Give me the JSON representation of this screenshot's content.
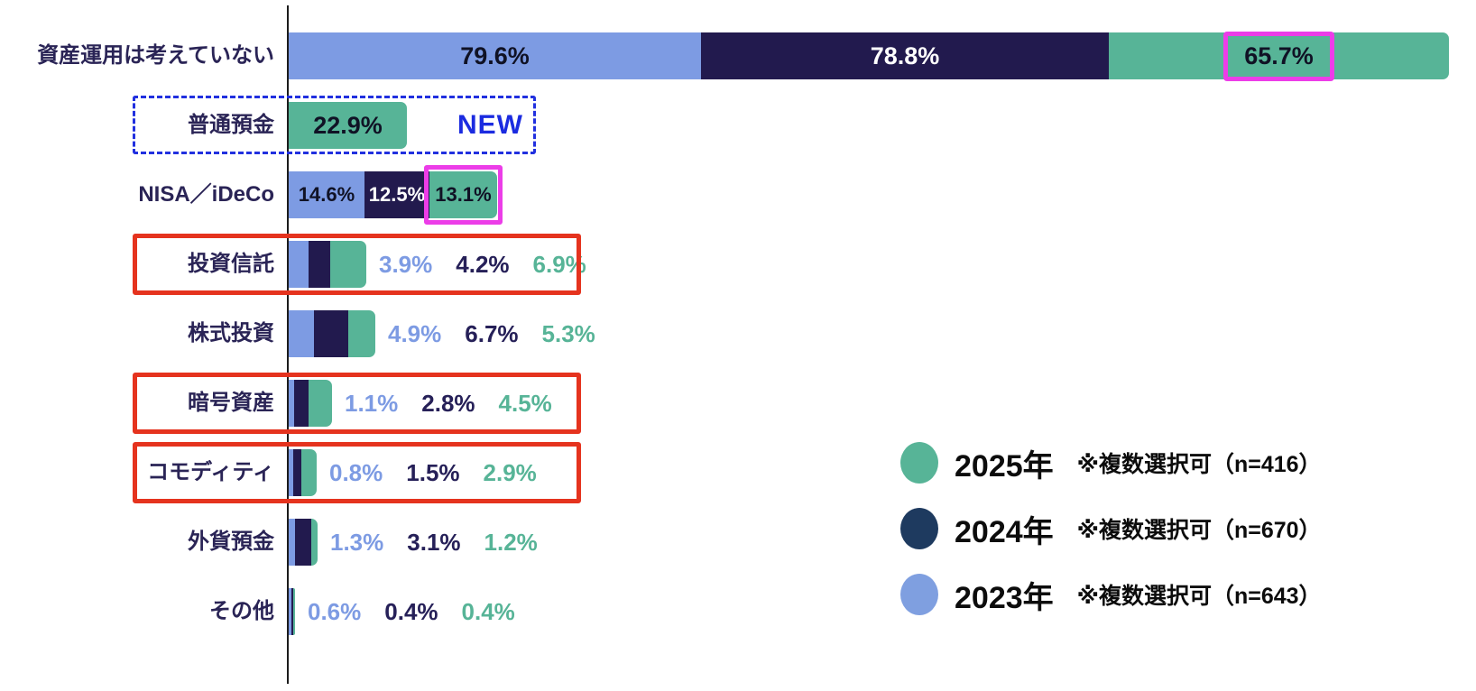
{
  "chart_data": {
    "type": "bar",
    "orientation": "horizontal-stacked",
    "value_unit": "%",
    "title": "",
    "categories": [
      "資産運用は考えていない",
      "普通預金",
      "NISA／iDeCo",
      "投資信託",
      "株式投資",
      "暗号資産",
      "コモディティ",
      "外貨預金",
      "その他"
    ],
    "series": [
      {
        "name": "2023年",
        "color": "#7D9BE3",
        "value_text_color": "#7D9BE3",
        "values": [
          79.6,
          null,
          14.6,
          3.9,
          4.9,
          1.1,
          0.8,
          1.3,
          0.6
        ]
      },
      {
        "name": "2024年",
        "color": "#221A4E",
        "value_text_color": "#262058",
        "values": [
          78.8,
          null,
          12.5,
          4.2,
          6.7,
          2.8,
          1.5,
          3.1,
          0.4
        ]
      },
      {
        "name": "2025年",
        "color": "#57B497",
        "value_text_color": "#57B497",
        "values": [
          65.7,
          22.9,
          13.1,
          6.9,
          5.3,
          4.5,
          2.9,
          1.2,
          0.4
        ]
      }
    ],
    "value_labels_inside_categories": [
      "資産運用は考えていない",
      "普通預金",
      "NISA／iDeCo"
    ],
    "axis": {
      "baseline_at": 0,
      "gridlines": false
    },
    "legend_position": "right-bottom"
  },
  "legend": {
    "items": [
      {
        "year": "2025年",
        "note": "※複数選択可（n=416）",
        "color": "#57B497"
      },
      {
        "year": "2024年",
        "note": "※複数選択可（n=670）",
        "color": "#1E3A5F"
      },
      {
        "year": "2023年",
        "note": "※複数選択可（n=643）",
        "color": "#7F9FE0"
      }
    ]
  },
  "annotations": {
    "new_badge": {
      "text": "NEW",
      "category": "普通預金"
    },
    "blue_dashed_box_category": "普通預金",
    "magenta_boxes": [
      {
        "category": "資産運用は考えていない",
        "target": "value-label",
        "series": "2025年"
      },
      {
        "category": "NISA／iDeCo",
        "target": "segment",
        "series": "2025年"
      }
    ],
    "red_box_categories": [
      "投資信託",
      "暗号資産",
      "コモディティ"
    ],
    "colors": {
      "red_box": "#E5331E",
      "magenta_box": "#EC3DE8",
      "blue_dashed_box": "#2130DF",
      "new_text": "#1B2BE0",
      "inside_label_dark": "#101225",
      "inside_label_light": "#ffffff"
    }
  }
}
